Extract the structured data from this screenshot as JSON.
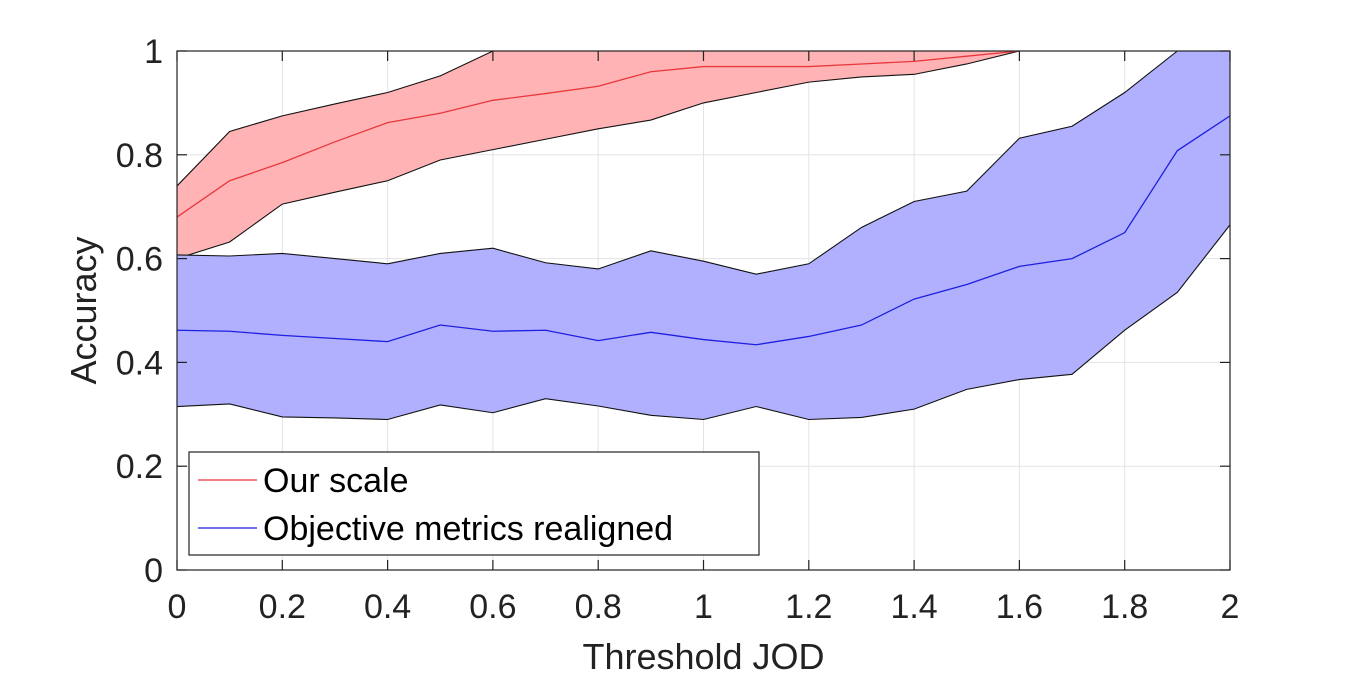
{
  "chart_data": {
    "type": "area",
    "xlabel": "Threshold JOD",
    "ylabel": "Accuracy",
    "xlim": [
      0,
      2
    ],
    "ylim": [
      0,
      1
    ],
    "grid": true,
    "legend_position": "bottom-left",
    "xticks": [
      0,
      0.2,
      0.4,
      0.6,
      0.8,
      1,
      1.2,
      1.4,
      1.6,
      1.8,
      2
    ],
    "xtick_labels": [
      "0",
      "0.2",
      "0.4",
      "0.6",
      "0.8",
      "1",
      "1.2",
      "1.4",
      "1.6",
      "1.8",
      "2"
    ],
    "yticks": [
      0,
      0.2,
      0.4,
      0.6,
      0.8,
      1
    ],
    "ytick_labels": [
      "0",
      "0.2",
      "0.4",
      "0.6",
      "0.8",
      "1"
    ],
    "x": [
      0,
      0.1,
      0.2,
      0.3,
      0.4,
      0.5,
      0.6,
      0.7,
      0.8,
      0.9,
      1.0,
      1.1,
      1.2,
      1.3,
      1.4,
      1.5,
      1.6,
      1.7,
      1.8,
      1.9,
      2.0
    ],
    "series": [
      {
        "name": "Our scale",
        "line_color": "#e8383d",
        "fill_color": "#ffb3b5",
        "mean": [
          0.68,
          0.75,
          0.785,
          0.825,
          0.862,
          0.88,
          0.905,
          0.918,
          0.932,
          0.96,
          0.97,
          0.97,
          0.97,
          0.975,
          0.98,
          0.99,
          1.0,
          null,
          null,
          null,
          null
        ],
        "upper": [
          0.74,
          0.845,
          0.875,
          0.898,
          0.92,
          0.952,
          1.0,
          1.0,
          1.0,
          1.0,
          1.0,
          1.0,
          1.0,
          1.0,
          1.0,
          1.0,
          1.0,
          null,
          null,
          null,
          null
        ],
        "lower": [
          0.6,
          0.632,
          0.705,
          0.728,
          0.75,
          0.79,
          0.81,
          0.83,
          0.85,
          0.867,
          0.9,
          0.92,
          0.94,
          0.95,
          0.955,
          0.975,
          1.0,
          null,
          null,
          null,
          null
        ]
      },
      {
        "name": "Objective metrics realigned",
        "line_color": "#1f1fe0",
        "fill_color": "#b0b0ff",
        "mean": [
          0.462,
          0.46,
          0.452,
          0.446,
          0.44,
          0.472,
          0.46,
          0.462,
          0.442,
          0.458,
          0.444,
          0.434,
          0.45,
          0.472,
          0.522,
          0.55,
          0.585,
          0.6,
          0.65,
          0.808,
          0.875
        ],
        "upper": [
          0.607,
          0.605,
          0.61,
          0.6,
          0.59,
          0.61,
          0.62,
          0.592,
          0.58,
          0.615,
          0.595,
          0.57,
          0.59,
          0.66,
          0.71,
          0.73,
          0.832,
          0.855,
          0.92,
          1.0,
          1.0
        ],
        "lower": [
          0.315,
          0.32,
          0.295,
          0.293,
          0.29,
          0.318,
          0.303,
          0.33,
          0.316,
          0.298,
          0.29,
          0.315,
          0.29,
          0.294,
          0.31,
          0.348,
          0.367,
          0.377,
          0.462,
          0.535,
          0.665
        ]
      }
    ]
  }
}
